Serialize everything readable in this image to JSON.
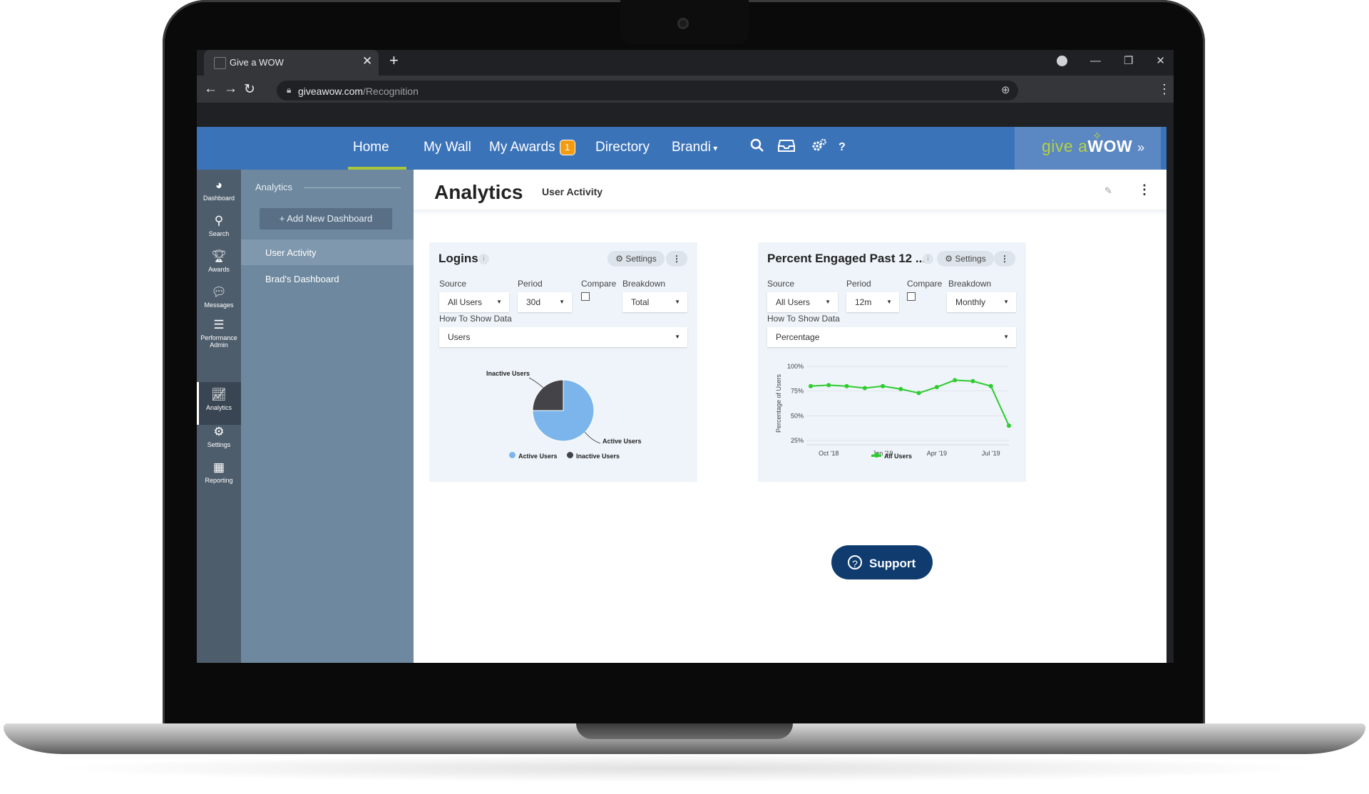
{
  "browser": {
    "tab_title": "Give a WOW",
    "tab_close": "✕",
    "new_tab": "+",
    "url_host": "giveawow.com",
    "url_path": "/Recognition"
  },
  "nav": {
    "home": "Home",
    "my_wall": "My Wall",
    "my_awards": "My Awards",
    "awards_count": "1",
    "directory": "Directory",
    "user": "Brandi",
    "help": "?"
  },
  "logo": {
    "give": "give a",
    "wow": "WOW",
    "arrows": "»"
  },
  "rail": {
    "dashboard": "Dashboard",
    "search": "Search",
    "awards": "Awards",
    "messages": "Messages",
    "performance": "Performance Admin",
    "analytics": "Analytics",
    "settings": "Settings",
    "reporting": "Reporting"
  },
  "panel": {
    "heading": "Analytics",
    "add_button": "+ Add New Dashboard",
    "items": [
      "User Activity",
      "Brad's Dashboard"
    ]
  },
  "page": {
    "title": "Analytics",
    "dashboard_name": "User Activity"
  },
  "card_logins": {
    "title": "Logins",
    "settings": "Settings",
    "labels": {
      "source": "Source",
      "period": "Period",
      "compare": "Compare",
      "breakdown": "Breakdown",
      "how": "How To Show Data"
    },
    "values": {
      "source": "All Users",
      "period": "30d",
      "breakdown": "Total",
      "how": "Users"
    },
    "chart_data": {
      "type": "pie",
      "slices": [
        {
          "label": "Active Users",
          "value": 75,
          "color": "#7cb5ec"
        },
        {
          "label": "Inactive Users",
          "value": 25,
          "color": "#434348"
        }
      ],
      "legend": [
        "Active Users",
        "Inactive Users"
      ],
      "legend_position": "bottom"
    }
  },
  "card_engaged": {
    "title": "Percent Engaged Past 12 ...",
    "settings": "Settings",
    "labels": {
      "source": "Source",
      "period": "Period",
      "compare": "Compare",
      "breakdown": "Breakdown",
      "how": "How To Show Data"
    },
    "values": {
      "source": "All Users",
      "period": "12m",
      "breakdown": "Monthly",
      "how": "Percentage"
    },
    "chart_data": {
      "type": "line",
      "ylabel": "Percentage of Users",
      "y_ticks": [
        "25%",
        "50%",
        "75%",
        "100%"
      ],
      "ylim": [
        25,
        100
      ],
      "x_ticks": [
        {
          "label": "Oct '18",
          "index": 1
        },
        {
          "label": "Jan '19",
          "index": 4
        },
        {
          "label": "Apr '19",
          "index": 7
        },
        {
          "label": "Jul '19",
          "index": 10
        }
      ],
      "series": [
        {
          "name": "All Users",
          "color": "#2ecc2e",
          "values": [
            80,
            81,
            80,
            78,
            80,
            77,
            73,
            79,
            86,
            85,
            80,
            40
          ]
        }
      ],
      "legend_position": "bottom"
    }
  },
  "support": {
    "label": "Support",
    "icon": "?"
  }
}
